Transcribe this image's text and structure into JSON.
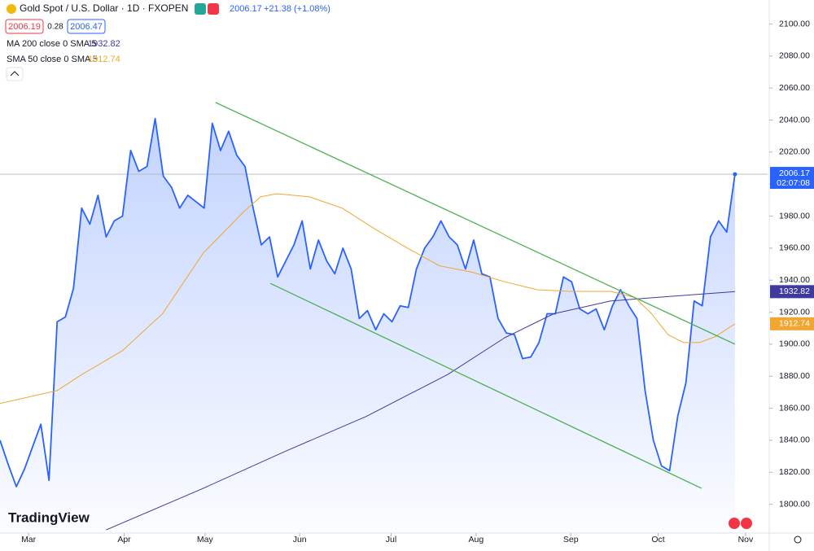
{
  "chart_data": {
    "type": "line",
    "title": "Gold Spot / U.S. Dollar · 1D · FXOPEN",
    "header": {
      "last": "2006.17",
      "change": "+21.38 (+1.08%)",
      "bid": "2006.19",
      "spread": "0.28",
      "ask": "2006.47",
      "countdown": "02:07:08",
      "logo": "TradingView"
    },
    "xlim": [
      0,
      94
    ],
    "xticks": [
      {
        "value": 3.5,
        "label": "Mar"
      },
      {
        "value": 15.2,
        "label": "Apr"
      },
      {
        "value": 25.1,
        "label": "May"
      },
      {
        "value": 36.7,
        "label": "Jun"
      },
      {
        "value": 47.9,
        "label": "Jul"
      },
      {
        "value": 58.3,
        "label": "Aug"
      },
      {
        "value": 69.9,
        "label": "Sep"
      },
      {
        "value": 80.6,
        "label": "Oct"
      },
      {
        "value": 91.3,
        "label": "Nov"
      }
    ],
    "ylim": [
      1782,
      2115
    ],
    "yticks": [
      {
        "value": 1800,
        "label": "1800.00"
      },
      {
        "value": 1820,
        "label": "1820.00"
      },
      {
        "value": 1840,
        "label": "1840.00"
      },
      {
        "value": 1860,
        "label": "1860.00"
      },
      {
        "value": 1880,
        "label": "1880.00"
      },
      {
        "value": 1900,
        "label": "1900.00"
      },
      {
        "value": 1920,
        "label": "1920.00"
      },
      {
        "value": 1940,
        "label": "1940.00"
      },
      {
        "value": 1960,
        "label": "1960.00"
      },
      {
        "value": 1980,
        "label": "1980.00"
      },
      {
        "value": 2000,
        "label": "2000.00"
      },
      {
        "value": 2020,
        "label": "2020.00"
      },
      {
        "value": 2040,
        "label": "2040.00"
      },
      {
        "value": 2060,
        "label": "2060.00"
      },
      {
        "value": 2080,
        "label": "2080.00"
      },
      {
        "value": 2100,
        "label": "2100.00"
      }
    ],
    "series": [
      {
        "name": "Gold Spot / U.S. Dollar",
        "color": "#2962ff",
        "x": [
          0,
          1,
          2,
          3,
          4,
          5,
          6,
          7,
          8,
          9,
          10,
          11,
          12,
          13,
          14,
          15,
          16,
          17,
          18,
          19,
          20,
          21,
          22,
          23,
          24,
          25,
          26,
          27,
          28,
          29,
          30,
          31,
          32,
          33,
          34,
          35,
          36,
          37,
          38,
          39,
          40,
          41,
          42,
          43,
          44,
          45,
          46,
          47,
          48,
          49,
          50,
          51,
          52,
          53,
          54,
          55,
          56,
          57,
          58,
          59,
          60,
          61,
          62,
          63,
          64,
          65,
          66,
          67,
          68,
          69,
          70,
          71,
          72,
          73,
          74,
          75,
          76,
          77,
          78,
          79,
          80,
          81,
          82,
          83,
          84,
          85,
          86,
          87,
          88,
          89,
          90
        ],
        "values": [
          1840,
          1825,
          1811,
          1822,
          1836,
          1850,
          1815,
          1914,
          1917,
          1935,
          1985,
          1975,
          1993,
          1967,
          1977,
          1980,
          2021,
          2008,
          2011,
          2041,
          2005,
          1998,
          1985,
          1993,
          1989,
          1985,
          2038,
          2021,
          2033,
          2018,
          2011,
          1985,
          1962,
          1967,
          1942,
          1952,
          1962,
          1977,
          1947,
          1965,
          1952,
          1944,
          1960,
          1947,
          1916,
          1921,
          1909,
          1919,
          1914,
          1924,
          1923,
          1947,
          1960,
          1967,
          1977,
          1967,
          1962,
          1947,
          1965,
          1944,
          1942,
          1916,
          1907,
          1906,
          1891,
          1892,
          1901,
          1919,
          1919,
          1942,
          1939,
          1922,
          1919,
          1922,
          1909,
          1924,
          1934,
          1924,
          1916,
          1871,
          1840,
          1824,
          1821,
          1855,
          1876,
          1927,
          1924,
          1967,
          1977,
          1970,
          2006.17
        ]
      },
      {
        "name": "MA 200 close 0 SMA 5",
        "color": "#3f3a9e",
        "x": [
          13,
          24.9,
          34.9,
          44.9,
          54.8,
          61.8,
          67.8,
          74.8,
          79.8,
          90
        ],
        "values": [
          1784,
          1810,
          1833,
          1855,
          1881,
          1904,
          1919,
          1927,
          1929,
          1932.82
        ]
      },
      {
        "name": "SMA 50 close 0 SMA 5",
        "color": "#f0a630",
        "x": [
          0,
          7,
          10,
          15,
          19.9,
          24.9,
          29.9,
          31.9,
          33.9,
          37.9,
          41.9,
          45.9,
          49.9,
          53.8,
          57.8,
          61.8,
          65.8,
          69.8,
          74.8,
          77.8,
          79.8,
          81.8,
          83.7,
          85.7,
          87.7,
          90
        ],
        "values": [
          1863,
          1871,
          1881,
          1896,
          1919,
          1957,
          1983,
          1992,
          1994,
          1992,
          1985,
          1972,
          1960,
          1949,
          1945,
          1939,
          1934,
          1933,
          1933,
          1929,
          1919,
          1906,
          1901,
          1901,
          1905,
          1912.74
        ]
      }
    ],
    "trendlines": [
      {
        "color": "#4caf50",
        "x": [
          26.4,
          90
        ],
        "values": [
          2051,
          1900
        ]
      },
      {
        "color": "#4caf50",
        "x": [
          33.1,
          85.9
        ],
        "values": [
          1938,
          1810
        ]
      }
    ]
  }
}
